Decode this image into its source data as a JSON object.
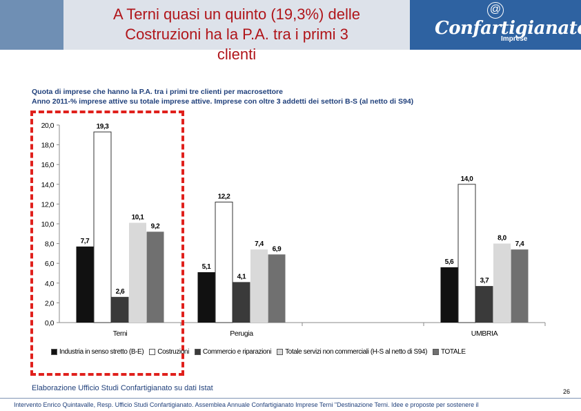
{
  "header": {
    "title_lines": [
      "A Terni quasi un quinto (19,3%) delle",
      "Costruzioni ha la P.A. tra i primi 3",
      "clienti"
    ],
    "logo_at": "@",
    "logo_text": "Confartigianato",
    "logo_sub": "Imprese"
  },
  "subtitle_lines": [
    "Quota di imprese che hanno la P.A. tra i primi tre clienti per macrosettore",
    "Anno 2011-% imprese attive su totale imprese attive. Imprese con oltre 3 addetti dei settori B-S (al netto di S94)"
  ],
  "source": "Elaborazione Ufficio Studi Confartigianato su dati Istat",
  "page_number": "26",
  "footer": "Intervento Enrico Quintavalle, Resp. Ufficio Studi Confartigianato. Assemblea Annuale Confartigianato Imprese Terni \"Destinazione Terni. Idee e proposte per sostenere il",
  "colors": {
    "title": "#b0151a",
    "highlight_box": "#e0201c",
    "series": [
      "#111111",
      "#ffffff",
      "#3a3a3a",
      "#d9d9d9",
      "#707070"
    ]
  },
  "chart_data": {
    "type": "bar",
    "categories": [
      "Terni",
      "Perugia",
      "",
      "UMBRIA"
    ],
    "series": [
      {
        "name": "Industria in senso stretto (B-E)",
        "values": [
          7.7,
          5.1,
          null,
          5.6
        ],
        "labels": [
          "7,7",
          "5,1",
          "",
          "5,6"
        ]
      },
      {
        "name": "Costruzioni",
        "values": [
          19.3,
          12.2,
          null,
          14.0
        ],
        "labels": [
          "19,3",
          "12,2",
          "",
          "14,0"
        ]
      },
      {
        "name": "Commercio e riparazioni",
        "values": [
          2.6,
          4.1,
          null,
          3.7
        ],
        "labels": [
          "2,6",
          "4,1",
          "",
          "3,7"
        ]
      },
      {
        "name": "Totale servizi non commerciali (H-S al netto di S94)",
        "values": [
          10.1,
          7.4,
          null,
          8.0
        ],
        "labels": [
          "10,1",
          "7,4",
          "",
          "8,0"
        ]
      },
      {
        "name": "TOTALE",
        "values": [
          9.2,
          6.9,
          null,
          7.4
        ],
        "labels": [
          "9,2",
          "6,9",
          "",
          "7,4"
        ]
      }
    ],
    "yticks": [
      "0,0",
      "2,0",
      "4,0",
      "6,0",
      "8,0",
      "10,0",
      "12,0",
      "14,0",
      "16,0",
      "18,0",
      "20,0"
    ],
    "ylim": [
      0,
      20
    ],
    "legend_position": "bottom",
    "highlighted_category": "Terni"
  }
}
